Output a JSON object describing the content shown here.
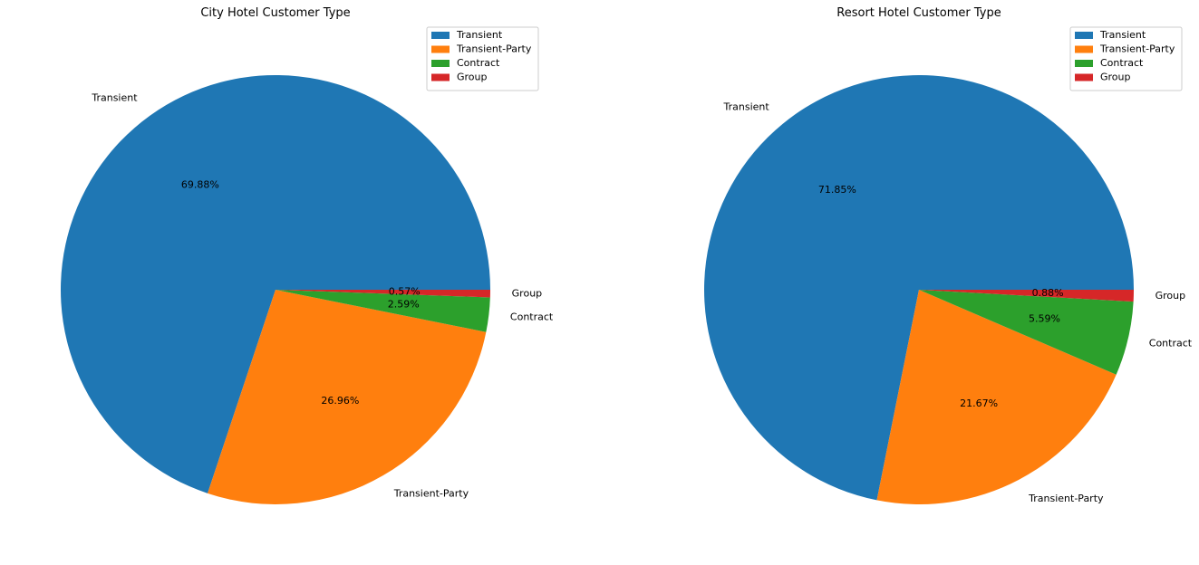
{
  "chart_data": [
    {
      "type": "pie",
      "title": "City Hotel Customer Type",
      "categories": [
        "Transient",
        "Transient-Party",
        "Contract",
        "Group"
      ],
      "values": [
        69.88,
        26.96,
        2.59,
        0.57
      ],
      "pct_labels": [
        "69.88%",
        "26.96%",
        "2.59%",
        "0.57%"
      ],
      "colors": [
        "#1f77b4",
        "#ff7f0e",
        "#2ca02c",
        "#d62728"
      ],
      "legend": {
        "placement": "top-right",
        "entries": [
          "Transient",
          "Transient-Party",
          "Contract",
          "Group"
        ]
      }
    },
    {
      "type": "pie",
      "title": "Resort Hotel Customer Type",
      "categories": [
        "Transient",
        "Transient-Party",
        "Contract",
        "Group"
      ],
      "values": [
        71.85,
        21.67,
        5.59,
        0.88
      ],
      "pct_labels": [
        "71.85%",
        "21.67%",
        "5.59%",
        "0.88%"
      ],
      "colors": [
        "#1f77b4",
        "#ff7f0e",
        "#2ca02c",
        "#d62728"
      ],
      "legend": {
        "placement": "top-right",
        "entries": [
          "Transient",
          "Transient-Party",
          "Contract",
          "Group"
        ]
      }
    }
  ]
}
